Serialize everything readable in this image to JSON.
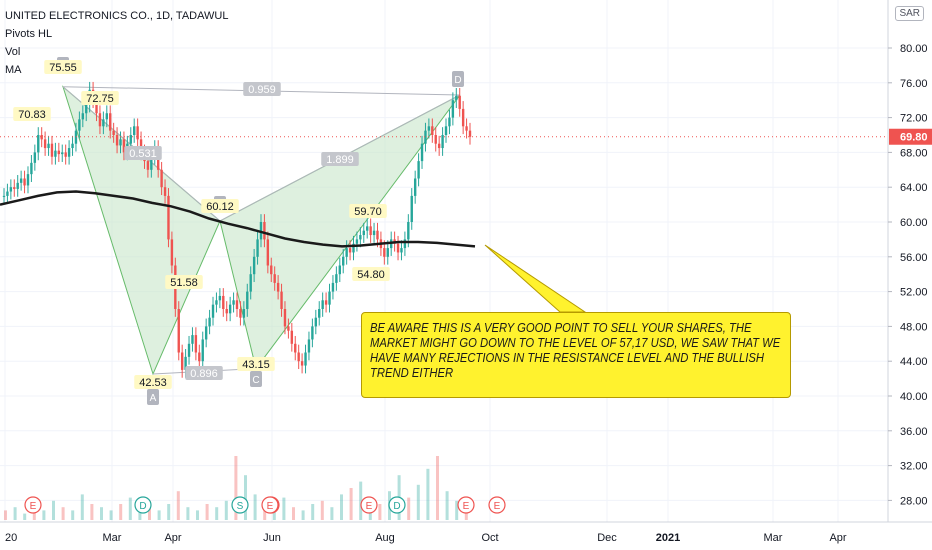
{
  "header": {
    "symbol_line": "UNITED ELECTRONICS CO., 1D, TADAWUL",
    "indicators": [
      "Pivots HL",
      "Vol",
      "MA"
    ]
  },
  "currency_label": "SAR",
  "price_axis": {
    "ticks": [
      "80.00",
      "76.00",
      "72.00",
      "68.00",
      "64.00",
      "60.00",
      "56.00",
      "52.00",
      "48.00",
      "44.00",
      "40.00",
      "36.00",
      "32.00",
      "28.00"
    ],
    "last_price": "69.80"
  },
  "time_axis": {
    "ticks": [
      "20",
      "Mar",
      "Apr",
      "Jun",
      "Aug",
      "Oct",
      "Dec",
      "2021",
      "Mar",
      "Apr"
    ]
  },
  "pattern": {
    "points": [
      {
        "name": "X",
        "label": "75.55",
        "price": 75.55
      },
      {
        "name": "A",
        "label": "42.53",
        "price": 42.53
      },
      {
        "name": "B",
        "label": "60.12",
        "price": 60.12
      },
      {
        "name": "C",
        "label": "43.15",
        "price": 43.15
      },
      {
        "name": "D",
        "label": "",
        "price": 74.6
      }
    ],
    "ratios": {
      "XA_AB": "0.531",
      "XA_D": "0.959",
      "AC": "0.896",
      "BC_CD": "1.899"
    }
  },
  "pivots": [
    {
      "label": "70.83",
      "price": 70.83
    },
    {
      "label": "72.75",
      "price": 72.75
    },
    {
      "label": "51.58",
      "price": 51.58
    },
    {
      "label": "59.70",
      "price": 59.7
    },
    {
      "label": "54.80",
      "price": 54.8
    }
  ],
  "events": [
    "E",
    "D",
    "E",
    "S",
    "E",
    "E",
    "D",
    "E",
    "E"
  ],
  "annotation": "BE AWARE THIS IS A VERY GOOD POINT TO SELL YOUR SHARES, THE MARKET MIGHT GO DOWN TO THE LEVEL OF 57,17 USD, WE SAW THAT WE HAVE MANY REJECTIONS IN THE RESISTANCE LEVEL AND THE BULLISH TREND EITHER",
  "colors": {
    "up": "#26a69a",
    "down": "#ef5350",
    "pattern_fill": "#c8e6c9",
    "ma": "#1a1a1a",
    "callout": "#fff22e",
    "last_price": "#ef5350"
  },
  "chart_data": {
    "type": "candlestick",
    "ylim": [
      25,
      83
    ],
    "price_series_close": [
      63,
      63.5,
      64,
      63.8,
      64.5,
      65,
      64.2,
      65.5,
      66.8,
      68,
      70,
      69.5,
      68.5,
      69,
      67.5,
      68.2,
      67.8,
      68,
      67.5,
      68.5,
      69,
      70.5,
      71.8,
      72.5,
      73.5,
      75.2,
      74,
      72.5,
      71,
      71.8,
      72.5,
      70.5,
      70,
      68.8,
      69.5,
      68,
      69,
      70,
      71,
      69.5,
      68,
      67,
      66,
      67.5,
      68.5,
      66,
      64,
      63,
      58,
      55,
      50,
      45,
      43,
      44.5,
      46,
      47,
      45,
      44,
      46.5,
      48,
      49,
      50.5,
      51,
      51.5,
      50,
      49.5,
      50.5,
      51,
      50,
      49,
      50,
      52,
      54,
      56,
      58,
      60,
      58,
      55,
      54,
      53,
      52,
      50,
      48,
      47.5,
      46,
      45,
      44,
      43.5,
      45,
      46.5,
      48,
      49,
      50,
      51,
      50.5,
      52,
      53,
      54,
      55,
      56,
      57,
      56.5,
      57.5,
      58,
      58.5,
      59,
      59.5,
      58.5,
      59,
      58,
      57,
      56,
      57,
      58,
      57.5,
      56.5,
      57,
      58,
      60,
      63,
      65,
      67,
      69,
      70.5,
      71,
      70,
      69,
      68.5,
      70,
      71,
      72,
      74,
      74.5,
      73,
      71,
      70.5,
      69.8
    ],
    "ma_series": [
      62,
      62.5,
      63,
      63.4,
      63.5,
      63.3,
      63,
      62.7,
      62.2,
      61.8,
      61.2,
      60.4,
      59.8,
      59.3,
      58.7,
      58.1,
      57.7,
      57.4,
      57.2,
      57.3,
      57.5,
      57.7,
      57.7,
      57.6,
      57.4,
      57.2
    ],
    "volume": [
      3,
      4,
      2,
      5,
      3,
      6,
      4,
      3,
      8,
      5,
      4,
      3,
      5,
      7,
      4,
      6,
      3,
      5,
      9,
      4,
      3,
      5,
      4,
      6,
      20,
      14,
      8,
      6,
      5,
      7,
      4,
      3,
      5,
      6,
      4,
      8,
      10,
      12,
      6,
      5,
      9,
      14,
      7,
      11,
      16,
      20,
      9,
      6,
      4
    ],
    "series": [
      {
        "name": "MA",
        "values": [
          62,
          62.5,
          63,
          63.4,
          63.5,
          63.3,
          63,
          62.7,
          62.2,
          61.8,
          61.2,
          60.4,
          59.8,
          59.3,
          58.7,
          58.1,
          57.7,
          57.4,
          57.2,
          57.3,
          57.5,
          57.7,
          57.7,
          57.6,
          57.4,
          57.2
        ]
      }
    ]
  }
}
